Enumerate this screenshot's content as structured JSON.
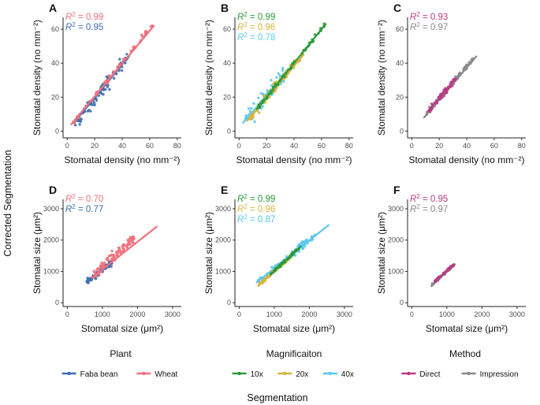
{
  "figure": {
    "global_ylabel": "Corrected Segmentation",
    "global_xlabel": "Segmentation"
  },
  "colors": {
    "faba_bean": "#3b6fb0",
    "wheat": "#f0707c",
    "mag_10x": "#2a9a3a",
    "mag_20x": "#d7b43a",
    "mag_40x": "#5cc7ec",
    "direct": "#b83a86",
    "impression": "#888888"
  },
  "legends": [
    {
      "title": "Plant",
      "items": [
        {
          "label": "Faba bean",
          "color_key": "faba_bean"
        },
        {
          "label": "Wheat",
          "color_key": "wheat"
        }
      ]
    },
    {
      "title": "Magnificaiton",
      "items": [
        {
          "label": "10x",
          "color_key": "mag_10x"
        },
        {
          "label": "20x",
          "color_key": "mag_20x"
        },
        {
          "label": "40x",
          "color_key": "mag_40x"
        }
      ]
    },
    {
      "title": "Method",
      "items": [
        {
          "label": "Direct",
          "color_key": "direct"
        },
        {
          "label": "Impression",
          "color_key": "impression"
        }
      ]
    }
  ],
  "chart_data": [
    {
      "panel": "A",
      "type": "scatter",
      "xlabel": "Stomatal density (no mm⁻²)",
      "ylabel": "Stomatal density (no mm⁻²)",
      "xlim": [
        -3,
        83
      ],
      "ylim": [
        -4,
        67
      ],
      "xticks": [
        0,
        20,
        40,
        60,
        80
      ],
      "yticks": [
        0,
        20,
        40,
        60
      ],
      "series": [
        {
          "name": "Faba bean",
          "color_key": "faba_bean",
          "r2": "0.95",
          "fit": [
            [
              5,
              5
            ],
            [
              45,
              44
            ]
          ],
          "xrange": [
            5,
            45
          ],
          "slope": 1.02,
          "intercept": -1.5,
          "noise": 3.5,
          "n": 90
        },
        {
          "name": "Wheat",
          "color_key": "wheat",
          "r2": "0.99",
          "fit": [
            [
              3,
              4
            ],
            [
              63,
              62
            ]
          ],
          "xrange": [
            4,
            62
          ],
          "slope": 1.0,
          "intercept": 0.5,
          "noise": 1.4,
          "n": 60
        }
      ]
    },
    {
      "panel": "B",
      "type": "scatter",
      "xlabel": "Stomatal density (no mm⁻²)",
      "ylabel": "Stomatal density (no mm⁻²)",
      "xlim": [
        -3,
        83
      ],
      "ylim": [
        -4,
        67
      ],
      "xticks": [
        0,
        20,
        40,
        60,
        80
      ],
      "yticks": [
        0,
        20,
        40,
        60
      ],
      "series": [
        {
          "name": "40x",
          "color_key": "mag_40x",
          "r2": "0.78",
          "fit": [
            [
              3,
              5
            ],
            [
              35,
              35
            ]
          ],
          "xrange": [
            4,
            34
          ],
          "slope": 0.95,
          "intercept": 2,
          "noise": 5,
          "n": 70
        },
        {
          "name": "20x",
          "color_key": "mag_20x",
          "r2": "0.96",
          "fit": [
            [
              6,
              6
            ],
            [
              47,
              45
            ]
          ],
          "xrange": [
            7,
            46
          ],
          "slope": 0.98,
          "intercept": 0,
          "noise": 2.5,
          "n": 80
        },
        {
          "name": "10x",
          "color_key": "mag_10x",
          "r2": "0.99",
          "fit": [
            [
              13,
              13
            ],
            [
              63,
              63
            ]
          ],
          "xrange": [
            14,
            62
          ],
          "slope": 1.0,
          "intercept": 0,
          "noise": 1.5,
          "n": 60
        }
      ]
    },
    {
      "panel": "C",
      "type": "scatter",
      "xlabel": "Stomatal density (no mm⁻²)",
      "ylabel": "Stomatal density (no mm⁻²)",
      "xlim": [
        -3,
        83
      ],
      "ylim": [
        -4,
        67
      ],
      "xticks": [
        0,
        20,
        40,
        60,
        80
      ],
      "yticks": [
        0,
        20,
        40,
        60
      ],
      "series": [
        {
          "name": "Impression",
          "color_key": "impression",
          "r2": "0.97",
          "fit": [
            [
              9,
              8
            ],
            [
              47,
              44
            ]
          ],
          "xrange": [
            10,
            46
          ],
          "slope": 0.95,
          "intercept": 0,
          "noise": 1.6,
          "n": 70
        },
        {
          "name": "Direct",
          "color_key": "direct",
          "r2": "0.93",
          "fit": [
            [
              12,
              12
            ],
            [
              32,
              31
            ]
          ],
          "xrange": [
            12,
            32
          ],
          "slope": 0.96,
          "intercept": 0,
          "noise": 2.2,
          "n": 45
        }
      ]
    },
    {
      "panel": "D",
      "type": "scatter",
      "xlabel": "Stomatal size (μm²)",
      "ylabel": "Stomatal size (μm²)",
      "xlim": [
        -120,
        3250
      ],
      "ylim": [
        -120,
        3300
      ],
      "xticks": [
        0,
        1000,
        2000,
        3000
      ],
      "yticks": [
        0,
        1000,
        2000,
        3000
      ],
      "series": [
        {
          "name": "Faba bean",
          "color_key": "faba_bean",
          "r2": "0.77",
          "fit": [
            [
              550,
              650
            ],
            [
              1300,
              1330
            ]
          ],
          "xrange": [
            550,
            1300
          ],
          "slope": 0.9,
          "intercept": 150,
          "noise": 90,
          "n": 90
        },
        {
          "name": "Wheat",
          "color_key": "wheat",
          "r2": "0.70",
          "fit": [
            [
              700,
              800
            ],
            [
              2550,
              2430
            ]
          ],
          "xrange": [
            700,
            1900
          ],
          "slope": 1.0,
          "intercept": 150,
          "noise": 160,
          "n": 90
        }
      ]
    },
    {
      "panel": "E",
      "type": "scatter",
      "xlabel": "Stomatal size (μm²)",
      "ylabel": "Stomatal size (μm²)",
      "xlim": [
        -120,
        3250
      ],
      "ylim": [
        -120,
        3300
      ],
      "xticks": [
        0,
        1000,
        2000,
        3000
      ],
      "yticks": [
        0,
        1000,
        2000,
        3000
      ],
      "series": [
        {
          "name": "40x",
          "color_key": "mag_40x",
          "r2": "0.87",
          "fit": [
            [
              500,
              650
            ],
            [
              2550,
              2480
            ]
          ],
          "xrange": [
            500,
            2200
          ],
          "slope": 0.9,
          "intercept": 200,
          "noise": 110,
          "n": 90
        },
        {
          "name": "20x",
          "color_key": "mag_20x",
          "r2": "0.96",
          "fit": [
            [
              550,
              550
            ],
            [
              1500,
              1520
            ]
          ],
          "xrange": [
            550,
            1500
          ],
          "slope": 1.0,
          "intercept": 0,
          "noise": 45,
          "n": 80
        },
        {
          "name": "10x",
          "color_key": "mag_10x",
          "r2": "0.99",
          "fit": [
            [
              900,
              900
            ],
            [
              1750,
              1800
            ]
          ],
          "xrange": [
            900,
            1700
          ],
          "slope": 1.05,
          "intercept": -40,
          "noise": 35,
          "n": 60
        }
      ]
    },
    {
      "panel": "F",
      "type": "scatter",
      "xlabel": "Stomatal size (μm²)",
      "ylabel": "Stomatal size (μm²)",
      "xlim": [
        -120,
        3250
      ],
      "ylim": [
        -120,
        3300
      ],
      "xticks": [
        0,
        1000,
        2000,
        3000
      ],
      "yticks": [
        0,
        1000,
        2000,
        3000
      ],
      "series": [
        {
          "name": "Impression",
          "color_key": "impression",
          "r2": "0.97",
          "fit": [
            [
              560,
              530
            ],
            [
              1220,
              1230
            ]
          ],
          "xrange": [
            560,
            1220
          ],
          "slope": 1.0,
          "intercept": 0,
          "noise": 35,
          "n": 60
        },
        {
          "name": "Direct",
          "color_key": "direct",
          "r2": "0.95",
          "fit": [
            [
              650,
              650
            ],
            [
              1200,
              1230
            ]
          ],
          "xrange": [
            650,
            1200
          ],
          "slope": 1.0,
          "intercept": 20,
          "noise": 40,
          "n": 40
        }
      ]
    }
  ]
}
